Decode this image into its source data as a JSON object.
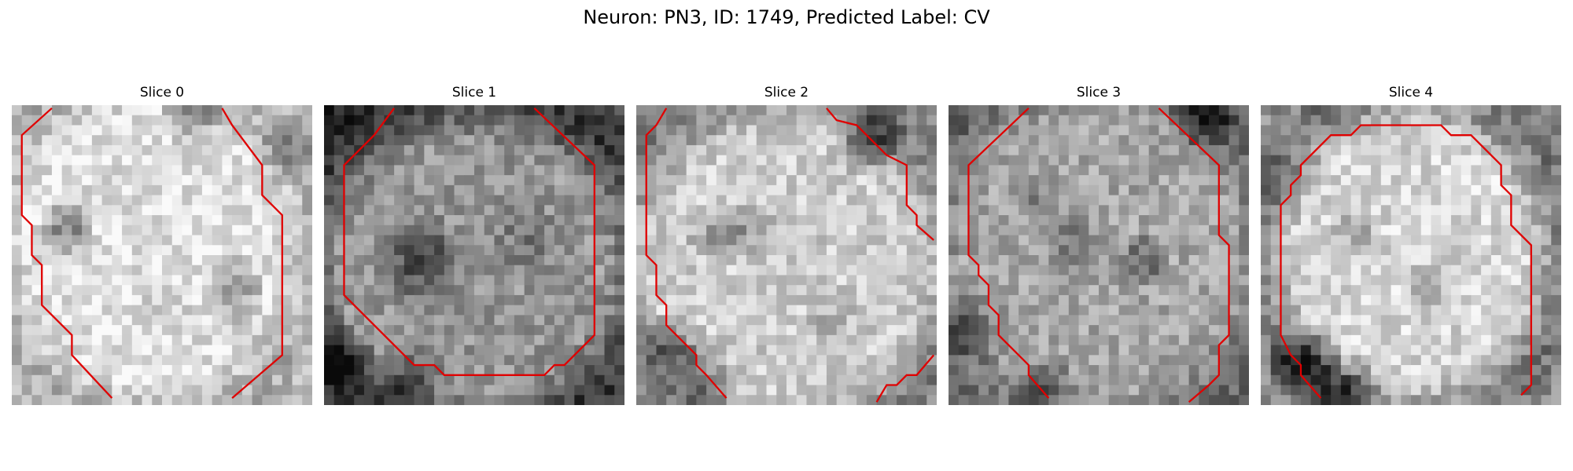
{
  "figure": {
    "title": "Neuron: PN3, ID: 1749, Predicted Label: CV"
  },
  "panels": [
    {
      "title": "Slice 0"
    },
    {
      "title": "Slice 1"
    },
    {
      "title": "Slice 2"
    },
    {
      "title": "Slice 3"
    },
    {
      "title": "Slice 4"
    }
  ],
  "colors": {
    "contour": "#e00000",
    "background": "#ffffff"
  }
}
